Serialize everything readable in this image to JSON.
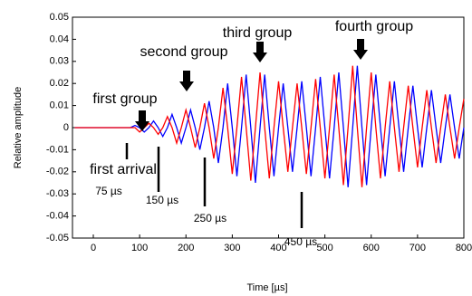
{
  "chart_data": {
    "type": "line",
    "xlabel": "Time [µs]",
    "ylabel": "Relative amplitude",
    "x": [
      -40,
      -30,
      -20,
      -10,
      0,
      10,
      20,
      30,
      40,
      50,
      60,
      70,
      80,
      90,
      100,
      110,
      120,
      130,
      140,
      150,
      160,
      170,
      180,
      190,
      200,
      210,
      220,
      230,
      240,
      250,
      260,
      270,
      280,
      290,
      300,
      310,
      320,
      330,
      340,
      350,
      360,
      370,
      380,
      390,
      400,
      410,
      420,
      430,
      440,
      450,
      460,
      470,
      480,
      490,
      500,
      510,
      520,
      530,
      540,
      550,
      560,
      570,
      580,
      590,
      600,
      610,
      620,
      630,
      640,
      650,
      660,
      670,
      680,
      690,
      700,
      710,
      720,
      730,
      740,
      750,
      760,
      770,
      780,
      790,
      800
    ],
    "series": [
      {
        "color": "#0000ff",
        "values": [
          0,
          0,
          0,
          0,
          0,
          0,
          0,
          0,
          0,
          0,
          0,
          0,
          0,
          0.001,
          0,
          -0.002,
          0,
          0.003,
          0,
          -0.004,
          0,
          0.006,
          0,
          -0.007,
          0,
          0.008,
          0,
          -0.01,
          0,
          0.012,
          0,
          -0.016,
          0,
          0.02,
          0,
          -0.022,
          0,
          0.024,
          0,
          -0.025,
          0,
          0.024,
          0,
          -0.022,
          0,
          0.02,
          0,
          -0.02,
          0,
          0.021,
          0,
          -0.022,
          0,
          0.023,
          0,
          -0.023,
          0,
          0.025,
          0,
          -0.027,
          0,
          0.028,
          0,
          -0.026,
          0,
          0.024,
          0,
          -0.022,
          0,
          0.021,
          0,
          -0.02,
          0,
          0.019,
          0,
          -0.018,
          0,
          0.017,
          0,
          -0.016,
          0,
          0.015,
          0,
          -0.014,
          0
        ]
      },
      {
        "color": "#ff0000",
        "values": [
          0,
          0,
          0,
          0,
          0,
          0,
          0,
          0,
          0,
          0,
          0,
          0,
          0,
          0,
          -0.002,
          0,
          0.002,
          0,
          -0.003,
          0,
          0.005,
          0,
          -0.007,
          0,
          0.008,
          0,
          -0.009,
          0,
          0.011,
          0,
          -0.014,
          0,
          0.018,
          0,
          -0.021,
          0,
          0.023,
          0,
          -0.024,
          0,
          0.025,
          0,
          -0.023,
          0,
          0.021,
          0,
          -0.02,
          0,
          0.02,
          0,
          -0.021,
          0,
          0.022,
          0,
          -0.023,
          0,
          0.024,
          0,
          -0.026,
          0,
          0.028,
          0,
          -0.027,
          0,
          0.025,
          0,
          -0.023,
          0,
          0.021,
          0,
          -0.02,
          0,
          0.019,
          0,
          -0.018,
          0,
          0.017,
          0,
          -0.016,
          0,
          0.015,
          0,
          -0.014,
          0,
          0.013
        ]
      }
    ],
    "xlim": [
      -45,
      800
    ],
    "xticks": [
      0,
      100,
      200,
      300,
      400,
      500,
      600,
      700,
      800
    ],
    "ylim": [
      -0.05,
      0.05
    ],
    "yticks": [
      0.05,
      0.04,
      0.03,
      0.02,
      0.01,
      0,
      -0.01,
      -0.02,
      -0.03,
      -0.04,
      -0.05
    ],
    "annotations": [
      "first group",
      "second group",
      "third group",
      "fourth group",
      "first arrival",
      "75 µs",
      "150 µs",
      "250 µs",
      "450 µs"
    ]
  }
}
